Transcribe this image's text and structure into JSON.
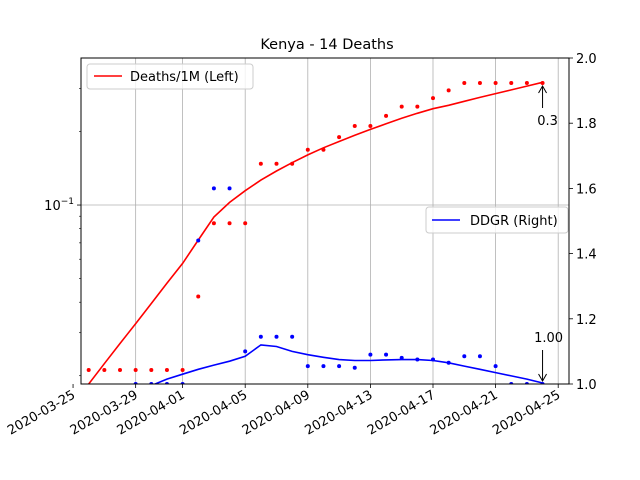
{
  "chart_data": {
    "type": "line",
    "title": "Kenya - 14 Deaths",
    "x_dates": [
      "2020-03-26",
      "2020-03-27",
      "2020-03-28",
      "2020-03-29",
      "2020-03-30",
      "2020-03-31",
      "2020-04-01",
      "2020-04-02",
      "2020-04-03",
      "2020-04-04",
      "2020-04-05",
      "2020-04-06",
      "2020-04-07",
      "2020-04-08",
      "2020-04-09",
      "2020-04-10",
      "2020-04-11",
      "2020-04-12",
      "2020-04-13",
      "2020-04-14",
      "2020-04-15",
      "2020-04-16",
      "2020-04-17",
      "2020-04-18",
      "2020-04-19",
      "2020-04-20",
      "2020-04-21",
      "2020-04-22",
      "2020-04-23",
      "2020-04-24"
    ],
    "x_ticks": [
      "2020-03-25",
      "2020-03-29",
      "2020-04-01",
      "2020-04-05",
      "2020-04-09",
      "2020-04-13",
      "2020-04-17",
      "2020-04-21",
      "2020-04-25"
    ],
    "left_axis": {
      "scale": "log",
      "ylim": [
        0.0185,
        0.4
      ],
      "tick_label": "10^-1",
      "tick_value": 0.1
    },
    "right_axis": {
      "scale": "linear",
      "ylim": [
        1.0,
        2.0
      ],
      "ticks": [
        "1.0",
        "1.2",
        "1.4",
        "1.6",
        "1.8",
        "2.0"
      ]
    },
    "grid": true,
    "series": [
      {
        "name": "Deaths/1M (Left)",
        "axis": "left",
        "color": "#ff0000",
        "points": [
          0.0211,
          0.0211,
          0.0211,
          0.0211,
          0.0211,
          0.0211,
          0.0211,
          0.0422,
          0.0842,
          0.0842,
          0.0842,
          0.1475,
          0.1475,
          0.1475,
          0.1685,
          0.1685,
          0.1896,
          0.2107,
          0.2107,
          0.2318,
          0.2528,
          0.2528,
          0.2739,
          0.2949,
          0.316,
          0.316,
          0.316,
          0.316,
          0.316,
          0.316
        ],
        "line": [
          0.0185,
          0.0224,
          0.0271,
          0.0327,
          0.0395,
          0.0478,
          0.0577,
          0.0719,
          0.0893,
          0.1025,
          0.1145,
          0.1265,
          0.1378,
          0.149,
          0.1605,
          0.1715,
          0.182,
          0.193,
          0.204,
          0.215,
          0.2265,
          0.2375,
          0.248,
          0.256,
          0.266,
          0.276,
          0.286,
          0.296,
          0.307,
          0.318
        ]
      },
      {
        "name": "DDGR (Right)",
        "axis": "right",
        "color": "#0000ff",
        "points": [
          null,
          null,
          null,
          1.0,
          1.0,
          1.0,
          1.0,
          1.44,
          1.6,
          1.6,
          1.1,
          1.145,
          1.145,
          1.145,
          1.055,
          1.055,
          1.055,
          1.05,
          1.09,
          1.09,
          1.08,
          1.075,
          1.075,
          1.065,
          1.085,
          1.085,
          1.055,
          1.0,
          1.0,
          1.0
        ],
        "line": [
          null,
          null,
          null,
          null,
          0.995,
          1.015,
          1.03,
          1.045,
          1.058,
          1.07,
          1.085,
          1.12,
          1.115,
          1.1,
          1.09,
          1.082,
          1.075,
          1.072,
          1.072,
          1.074,
          1.075,
          1.075,
          1.072,
          1.065,
          1.055,
          1.045,
          1.035,
          1.025,
          1.015,
          1.003
        ]
      }
    ],
    "annotations": [
      {
        "text": "0.3",
        "x": "2020-04-24",
        "value": 0.316,
        "axis": "left"
      },
      {
        "text": "1.00",
        "x": "2020-04-24",
        "value": 1.0,
        "axis": "right"
      }
    ]
  }
}
